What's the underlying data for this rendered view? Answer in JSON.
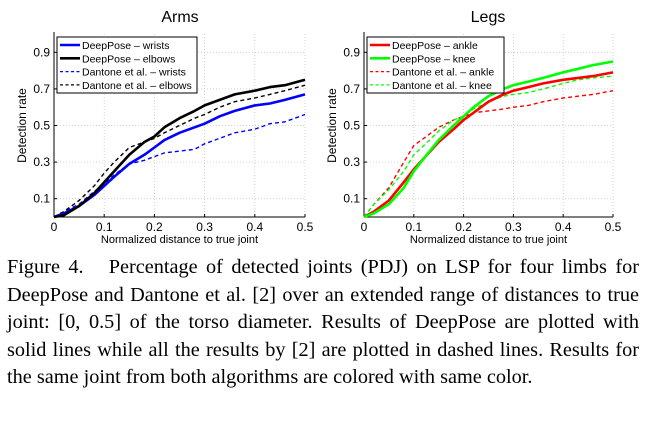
{
  "chart_data": [
    {
      "type": "line",
      "title": "Arms",
      "xlabel": "Normalized distance to true joint",
      "ylabel": "Detection rate",
      "xlim": [
        0,
        0.5
      ],
      "ylim": [
        0,
        1.0
      ],
      "xticks": [
        "0",
        "0.1",
        "0.2",
        "0.3",
        "0.4",
        "0.5"
      ],
      "xtick_values": [
        0,
        0.1,
        0.2,
        0.3,
        0.4,
        0.5
      ],
      "yticks": [
        "0.1",
        "0.3",
        "0.5",
        "0.7",
        "0.9"
      ],
      "ytick_values": [
        0.1,
        0.3,
        0.5,
        0.7,
        0.9
      ],
      "grid": true,
      "legend_position": "top-left",
      "x": [
        0,
        0.02,
        0.05,
        0.08,
        0.1,
        0.12,
        0.15,
        0.18,
        0.2,
        0.22,
        0.25,
        0.28,
        0.3,
        0.33,
        0.36,
        0.4,
        0.43,
        0.46,
        0.5
      ],
      "series": [
        {
          "name": "DeepPose – wrists",
          "color": "#0000ff",
          "style": "solid",
          "values": [
            0,
            0.02,
            0.06,
            0.12,
            0.17,
            0.22,
            0.29,
            0.34,
            0.38,
            0.42,
            0.46,
            0.49,
            0.51,
            0.55,
            0.58,
            0.61,
            0.62,
            0.64,
            0.67
          ]
        },
        {
          "name": "DeepPose – elbows",
          "color": "#000000",
          "style": "solid",
          "values": [
            0,
            0.01,
            0.06,
            0.13,
            0.19,
            0.25,
            0.34,
            0.41,
            0.44,
            0.49,
            0.54,
            0.58,
            0.61,
            0.64,
            0.67,
            0.69,
            0.71,
            0.72,
            0.75
          ]
        },
        {
          "name": "Dantone et al. – wrists",
          "color": "#0000ff",
          "style": "dashed",
          "values": [
            0,
            0.03,
            0.07,
            0.14,
            0.18,
            0.23,
            0.29,
            0.31,
            0.33,
            0.35,
            0.36,
            0.37,
            0.4,
            0.43,
            0.46,
            0.48,
            0.51,
            0.52,
            0.56
          ]
        },
        {
          "name": "Dantone et al. – elbows",
          "color": "#000000",
          "style": "dashed",
          "values": [
            0,
            0.03,
            0.09,
            0.17,
            0.24,
            0.3,
            0.38,
            0.41,
            0.43,
            0.46,
            0.5,
            0.54,
            0.56,
            0.6,
            0.63,
            0.65,
            0.67,
            0.69,
            0.72
          ]
        }
      ]
    },
    {
      "type": "line",
      "title": "Legs",
      "xlabel": "Normalized distance to true joint",
      "ylabel": "Detection rate",
      "xlim": [
        0,
        0.5
      ],
      "ylim": [
        0,
        1.0
      ],
      "xticks": [
        "0",
        "0.1",
        "0.2",
        "0.3",
        "0.4",
        "0.5"
      ],
      "xtick_values": [
        0,
        0.1,
        0.2,
        0.3,
        0.4,
        0.5
      ],
      "yticks": [
        "0.1",
        "0.3",
        "0.5",
        "0.7",
        "0.9"
      ],
      "ytick_values": [
        0.1,
        0.3,
        0.5,
        0.7,
        0.9
      ],
      "grid": true,
      "legend_position": "top-left",
      "x": [
        0,
        0.02,
        0.05,
        0.08,
        0.1,
        0.12,
        0.15,
        0.18,
        0.2,
        0.22,
        0.25,
        0.28,
        0.3,
        0.33,
        0.36,
        0.4,
        0.43,
        0.46,
        0.5
      ],
      "series": [
        {
          "name": "DeepPose – ankle",
          "color": "#ff0000",
          "style": "solid",
          "values": [
            0,
            0.03,
            0.09,
            0.19,
            0.26,
            0.32,
            0.41,
            0.48,
            0.53,
            0.57,
            0.63,
            0.67,
            0.69,
            0.71,
            0.73,
            0.75,
            0.76,
            0.77,
            0.79
          ]
        },
        {
          "name": "DeepPose – knee",
          "color": "#00ff00",
          "style": "solid",
          "values": [
            0,
            0.02,
            0.07,
            0.16,
            0.25,
            0.32,
            0.42,
            0.5,
            0.55,
            0.6,
            0.66,
            0.7,
            0.72,
            0.74,
            0.76,
            0.79,
            0.81,
            0.83,
            0.85
          ]
        },
        {
          "name": "Dantone et al. – ankle",
          "color": "#ff0000",
          "style": "dashed",
          "values": [
            0,
            0.07,
            0.16,
            0.3,
            0.39,
            0.43,
            0.49,
            0.53,
            0.55,
            0.57,
            0.58,
            0.59,
            0.6,
            0.61,
            0.63,
            0.65,
            0.66,
            0.67,
            0.69
          ]
        },
        {
          "name": "Dantone et al. – knee",
          "color": "#00ff00",
          "style": "dashed",
          "values": [
            0,
            0.07,
            0.15,
            0.25,
            0.34,
            0.39,
            0.47,
            0.53,
            0.55,
            0.59,
            0.63,
            0.66,
            0.67,
            0.68,
            0.7,
            0.73,
            0.75,
            0.76,
            0.77
          ]
        }
      ]
    }
  ],
  "caption": {
    "label": "Figure 4.",
    "text": "Percentage of detected joints (PDJ) on LSP for four limbs for DeepPose and Dantone et al. [2] over an extended range of distances to true joint: [0, 0.5] of the torso diameter. Results of DeepPose are plotted with solid lines while all the results by [2] are plotted in dashed lines. Results for the same joint from both algorithms are colored with same color."
  }
}
